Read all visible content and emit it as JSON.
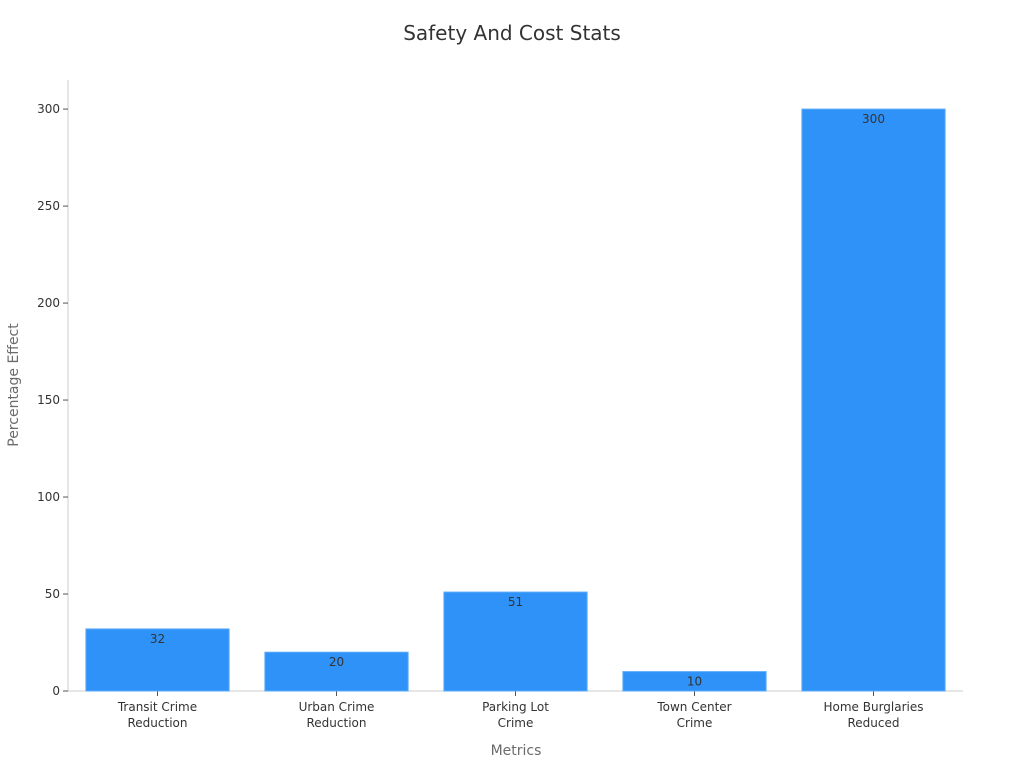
{
  "chart_data": {
    "type": "bar",
    "title": "Safety And Cost Stats",
    "xlabel": "Metrics",
    "ylabel": "Percentage Effect",
    "categories": [
      [
        "Transit Crime",
        "Reduction"
      ],
      [
        "Urban Crime",
        "Reduction"
      ],
      [
        "Parking Lot",
        "Crime"
      ],
      [
        "Town Center",
        "Crime"
      ],
      [
        "Home Burglaries",
        "Reduced"
      ]
    ],
    "values": [
      32,
      20,
      51,
      10,
      300
    ],
    "ylim": [
      0,
      315
    ],
    "yticks": [
      0,
      50,
      100,
      150,
      200,
      250,
      300
    ],
    "grid": false,
    "legend": "none",
    "bar_color": "#2f92f8"
  }
}
